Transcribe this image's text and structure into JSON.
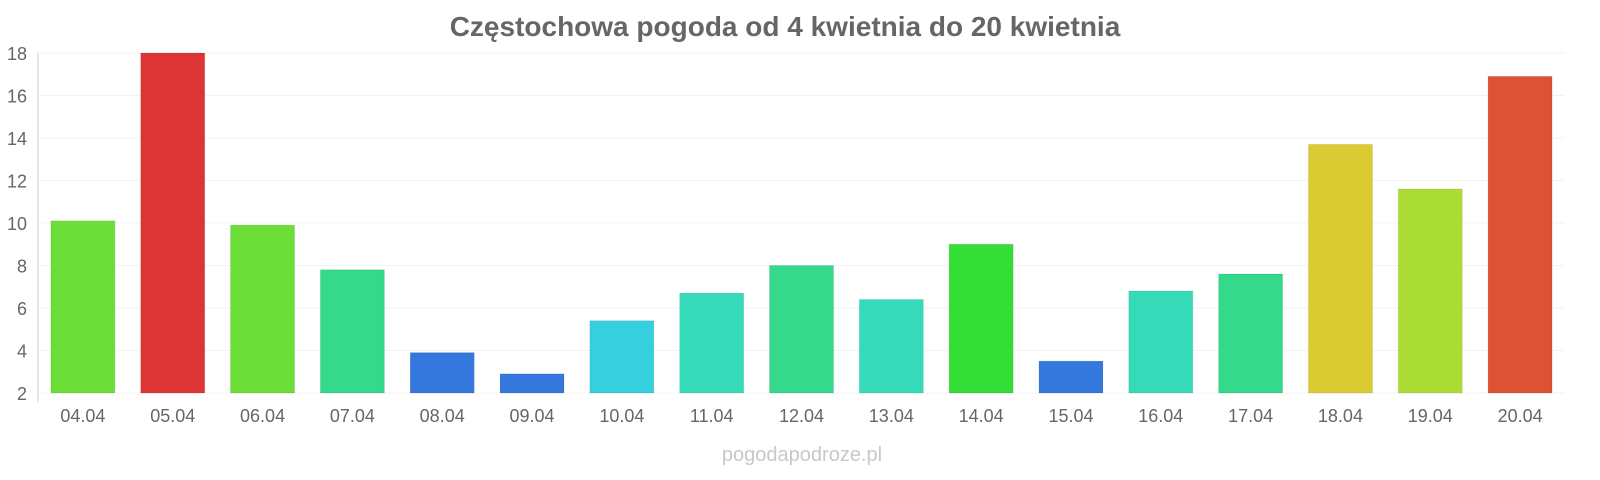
{
  "chart_data": {
    "type": "bar",
    "title": "Częstochowa pogoda od 4 kwietnia do 20 kwietnia",
    "xlabel": "",
    "ylabel": "",
    "ylim": [
      2,
      18
    ],
    "yticks": [
      2,
      4,
      6,
      8,
      10,
      12,
      14,
      16,
      18
    ],
    "grid": true,
    "categories": [
      "04.04",
      "05.04",
      "06.04",
      "07.04",
      "08.04",
      "09.04",
      "10.04",
      "11.04",
      "12.04",
      "13.04",
      "14.04",
      "15.04",
      "16.04",
      "17.04",
      "18.04",
      "19.04",
      "20.04"
    ],
    "values": [
      10.1,
      18.0,
      9.9,
      7.8,
      3.9,
      2.9,
      5.4,
      6.7,
      8.0,
      6.4,
      9.0,
      3.5,
      6.8,
      7.6,
      13.7,
      11.6,
      16.9
    ],
    "colors": [
      "#6ddd37",
      "#dd3535",
      "#6ddd37",
      "#35d98a",
      "#3578dd",
      "#3578dd",
      "#35cfdd",
      "#35dbb9",
      "#35d98a",
      "#35dbb9",
      "#35dd37",
      "#3578dd",
      "#35dbb9",
      "#35d98a",
      "#dbcb33",
      "#acdd35",
      "#dd5235"
    ]
  },
  "credit": "pogodapodroze.pl"
}
